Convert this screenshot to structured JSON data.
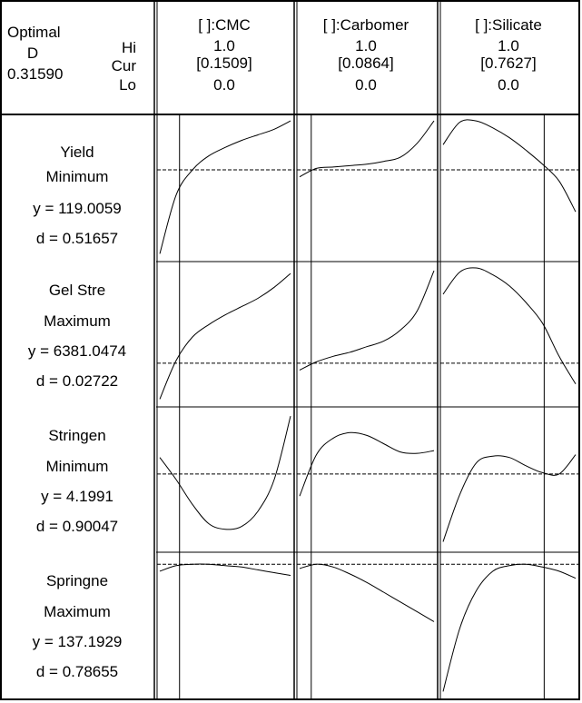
{
  "header": {
    "optimal_label": "Optimal",
    "d_label": "D",
    "d_value": "0.31590",
    "hi_label": "Hi",
    "cur_label": "Cur",
    "lo_label": "Lo"
  },
  "factors": [
    {
      "name": "[ ]:CMC",
      "hi": "1.0",
      "cur": "[0.1509]",
      "lo": "0.0",
      "cur_value": 0.1509
    },
    {
      "name": "[ ]:Carbomer",
      "hi": "1.0",
      "cur": "[0.0864]",
      "lo": "0.0",
      "cur_value": 0.0864
    },
    {
      "name": "[ ]:Silicate",
      "hi": "1.0",
      "cur": "[0.7627]",
      "lo": "0.0",
      "cur_value": 0.7627
    }
  ],
  "responses": [
    {
      "name": "Yield",
      "goal": "Minimum",
      "y_text": "y = 119.0059",
      "d_text": "d = 0.51657"
    },
    {
      "name": "Gel Stre",
      "goal": "Maximum",
      "y_text": "y = 6381.0474",
      "d_text": "d = 0.02722"
    },
    {
      "name": "Stringen",
      "goal": "Minimum",
      "y_text": "y = 4.1991",
      "d_text": "d = 0.90047"
    },
    {
      "name": "Springne",
      "goal": "Maximum",
      "y_text": "y = 137.1929",
      "d_text": "d = 0.78655"
    }
  ],
  "chart_data": {
    "type": "line",
    "x_range": [
      0,
      1
    ],
    "y_range": [
      0,
      1
    ],
    "grid": false,
    "note_units": "curves are approximate shapes in normalized 0-1 units (x = factor level, y = relative response within cell)",
    "cells": [
      {
        "response": "Yield",
        "factor": "[ ]:CMC",
        "current_y": 0.63,
        "x": [
          0,
          0.125,
          0.25,
          0.375,
          0.5,
          0.625,
          0.75,
          0.875,
          1
        ],
        "y": [
          0.03,
          0.45,
          0.63,
          0.73,
          0.79,
          0.84,
          0.88,
          0.92,
          0.98
        ]
      },
      {
        "response": "Yield",
        "factor": "[ ]:Carbomer",
        "current_y": 0.63,
        "x": [
          0,
          0.125,
          0.25,
          0.375,
          0.5,
          0.625,
          0.75,
          0.875,
          1
        ],
        "y": [
          0.58,
          0.64,
          0.65,
          0.66,
          0.67,
          0.69,
          0.72,
          0.82,
          0.98
        ]
      },
      {
        "response": "Yield",
        "factor": "[ ]:Silicate",
        "current_y": 0.63,
        "x": [
          0,
          0.125,
          0.25,
          0.375,
          0.5,
          0.625,
          0.75,
          0.875,
          1
        ],
        "y": [
          0.81,
          0.97,
          0.98,
          0.93,
          0.86,
          0.77,
          0.67,
          0.55,
          0.33
        ]
      },
      {
        "response": "Gel Stre",
        "factor": "[ ]:CMC",
        "current_y": 0.29,
        "x": [
          0,
          0.125,
          0.25,
          0.375,
          0.5,
          0.625,
          0.75,
          0.875,
          1
        ],
        "y": [
          0.03,
          0.31,
          0.48,
          0.57,
          0.64,
          0.7,
          0.76,
          0.84,
          0.94
        ]
      },
      {
        "response": "Gel Stre",
        "factor": "[ ]:Carbomer",
        "current_y": 0.29,
        "x": [
          0,
          0.125,
          0.25,
          0.375,
          0.5,
          0.625,
          0.75,
          0.875,
          1
        ],
        "y": [
          0.24,
          0.3,
          0.34,
          0.37,
          0.41,
          0.45,
          0.53,
          0.67,
          0.96
        ]
      },
      {
        "response": "Gel Stre",
        "factor": "[ ]:Silicate",
        "current_y": 0.29,
        "x": [
          0,
          0.125,
          0.25,
          0.375,
          0.5,
          0.625,
          0.75,
          0.875,
          1
        ],
        "y": [
          0.79,
          0.95,
          0.98,
          0.93,
          0.85,
          0.73,
          0.58,
          0.34,
          0.14
        ]
      },
      {
        "response": "Stringen",
        "factor": "[ ]:CMC",
        "current_y": 0.54,
        "x": [
          0,
          0.125,
          0.25,
          0.375,
          0.5,
          0.625,
          0.75,
          0.875,
          1
        ],
        "y": [
          0.66,
          0.5,
          0.32,
          0.18,
          0.14,
          0.16,
          0.27,
          0.5,
          0.96
        ]
      },
      {
        "response": "Stringen",
        "factor": "[ ]:Carbomer",
        "current_y": 0.54,
        "x": [
          0,
          0.125,
          0.25,
          0.375,
          0.5,
          0.625,
          0.75,
          0.875,
          1
        ],
        "y": [
          0.38,
          0.68,
          0.8,
          0.84,
          0.82,
          0.76,
          0.7,
          0.69,
          0.71
        ]
      },
      {
        "response": "Stringen",
        "factor": "[ ]:Silicate",
        "current_y": 0.54,
        "x": [
          0,
          0.125,
          0.25,
          0.375,
          0.5,
          0.625,
          0.75,
          0.875,
          1
        ],
        "y": [
          0.05,
          0.39,
          0.62,
          0.67,
          0.66,
          0.6,
          0.55,
          0.54,
          0.68
        ]
      },
      {
        "response": "Springne",
        "factor": "[ ]:CMC",
        "current_y": 0.94,
        "x": [
          0,
          0.125,
          0.25,
          0.375,
          0.5,
          0.625,
          0.75,
          0.875,
          1
        ],
        "y": [
          0.89,
          0.93,
          0.94,
          0.94,
          0.93,
          0.92,
          0.9,
          0.88,
          0.86
        ]
      },
      {
        "response": "Springne",
        "factor": "[ ]:Carbomer",
        "current_y": 0.94,
        "x": [
          0,
          0.125,
          0.25,
          0.375,
          0.5,
          0.625,
          0.75,
          0.875,
          1
        ],
        "y": [
          0.91,
          0.94,
          0.92,
          0.87,
          0.81,
          0.74,
          0.67,
          0.6,
          0.53
        ]
      },
      {
        "response": "Springne",
        "factor": "[ ]:Silicate",
        "current_y": 0.94,
        "x": [
          0,
          0.125,
          0.25,
          0.375,
          0.5,
          0.625,
          0.75,
          0.875,
          1
        ],
        "y": [
          0.03,
          0.48,
          0.75,
          0.89,
          0.93,
          0.94,
          0.92,
          0.89,
          0.84
        ]
      }
    ]
  }
}
